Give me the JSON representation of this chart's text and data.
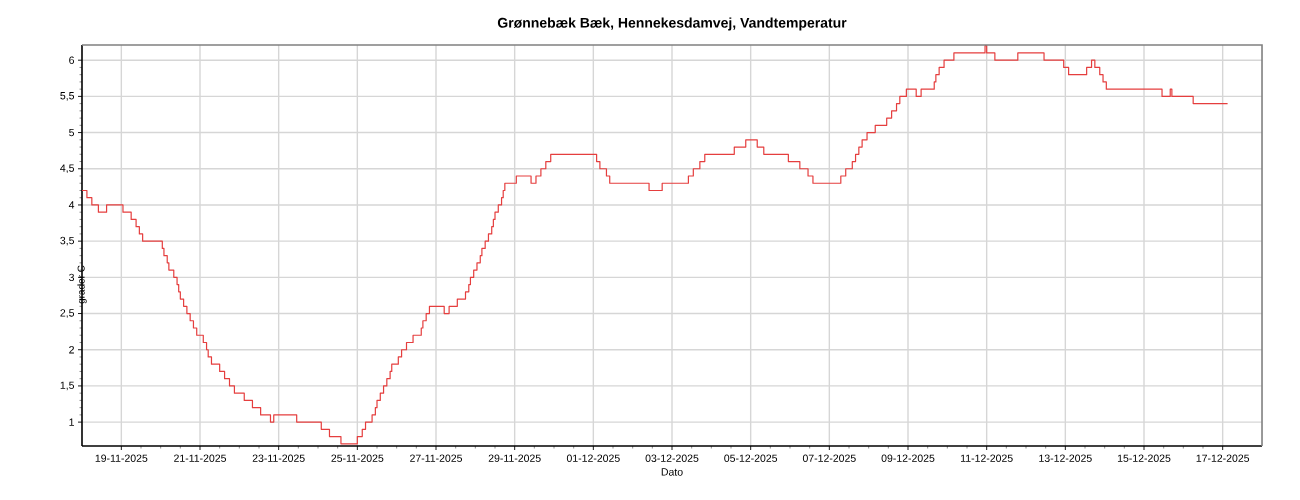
{
  "chart_data": {
    "type": "step",
    "title": "Grønnebæk Bæk, Hennekesdamvej, Vandtemperatur",
    "xlabel": "Dato",
    "ylabel": "grader C",
    "color": "#e53e3e",
    "x": [
      "2025-11-18T00:00",
      "2025-11-18T03:00",
      "2025-11-18T06:00",
      "2025-11-18T10:00",
      "2025-11-18T15:00",
      "2025-11-19T01:00",
      "2025-11-19T06:00",
      "2025-11-19T09:00",
      "2025-11-19T11:00",
      "2025-11-19T13:00",
      "2025-11-20T01:00",
      "2025-11-20T02:00",
      "2025-11-20T04:00",
      "2025-11-20T05:00",
      "2025-11-20T08:00",
      "2025-11-20T10:00",
      "2025-11-20T11:00",
      "2025-11-20T12:00",
      "2025-11-20T14:00",
      "2025-11-20T16:00",
      "2025-11-20T18:00",
      "2025-11-20T20:00",
      "2025-11-20T22:00",
      "2025-11-21T02:00",
      "2025-11-21T04:00",
      "2025-11-21T05:00",
      "2025-11-21T07:00",
      "2025-11-21T12:00",
      "2025-11-21T15:00",
      "2025-11-21T18:00",
      "2025-11-21T21:00",
      "2025-11-22T03:00",
      "2025-11-22T08:00",
      "2025-11-22T13:00",
      "2025-11-22T19:00",
      "2025-11-22T21:00",
      "2025-11-23T11:00",
      "2025-11-24T02:00",
      "2025-11-24T07:00",
      "2025-11-24T14:00",
      "2025-11-25T00:00",
      "2025-11-25T03:00",
      "2025-11-25T05:00",
      "2025-11-25T09:00",
      "2025-11-25T11:00",
      "2025-11-25T12:00",
      "2025-11-25T14:00",
      "2025-11-25T16:00",
      "2025-11-25T18:00",
      "2025-11-25T20:00",
      "2025-11-25T21:00",
      "2025-11-26T01:00",
      "2025-11-26T03:00",
      "2025-11-26T06:00",
      "2025-11-26T10:00",
      "2025-11-26T15:00",
      "2025-11-26T16:00",
      "2025-11-26T18:00",
      "2025-11-26T20:00",
      "2025-11-27T05:00",
      "2025-11-27T08:00",
      "2025-11-27T13:00",
      "2025-11-27T18:00",
      "2025-11-27T20:00",
      "2025-11-27T21:00",
      "2025-11-27T23:00",
      "2025-11-28T01:00",
      "2025-11-28T03:00",
      "2025-11-28T04:00",
      "2025-11-28T06:00",
      "2025-11-28T08:00",
      "2025-11-28T10:00",
      "2025-11-28T11:00",
      "2025-11-28T12:00",
      "2025-11-28T14:00",
      "2025-11-28T16:00",
      "2025-11-28T17:00",
      "2025-11-28T18:00",
      "2025-11-29T01:00",
      "2025-11-29T10:00",
      "2025-11-29T13:00",
      "2025-11-29T16:00",
      "2025-11-29T19:00",
      "2025-11-29T22:00",
      "2025-12-01T02:00",
      "2025-12-01T04:00",
      "2025-12-01T08:00",
      "2025-12-01T10:00",
      "2025-12-02T10:00",
      "2025-12-02T18:00",
      "2025-12-03T10:00",
      "2025-12-03T13:00",
      "2025-12-03T17:00",
      "2025-12-03T20:00",
      "2025-12-04T14:00",
      "2025-12-04T21:00",
      "2025-12-05T04:00",
      "2025-12-05T08:00",
      "2025-12-05T23:00",
      "2025-12-06T06:00",
      "2025-12-06T11:00",
      "2025-12-06T14:00",
      "2025-12-07T07:00",
      "2025-12-07T10:00",
      "2025-12-07T14:00",
      "2025-12-07T16:00",
      "2025-12-07T18:00",
      "2025-12-07T20:00",
      "2025-12-07T23:00",
      "2025-12-08T04:00",
      "2025-12-08T11:00",
      "2025-12-08T14:00",
      "2025-12-08T17:00",
      "2025-12-08T19:00",
      "2025-12-08T23:00",
      "2025-12-09T05:00",
      "2025-12-09T08:00",
      "2025-12-09T16:00",
      "2025-12-09T17:00",
      "2025-12-09T19:00",
      "2025-12-09T22:00",
      "2025-12-10T04:00",
      "2025-12-10T23:00",
      "2025-12-11T00:00",
      "2025-12-11T05:00",
      "2025-12-11T19:00",
      "2025-12-12T11:00",
      "2025-12-12T23:00",
      "2025-12-13T02:00",
      "2025-12-13T13:00",
      "2025-12-13T16:00",
      "2025-12-13T18:00",
      "2025-12-13T21:00",
      "2025-12-13T23:00",
      "2025-12-14T01:00",
      "2025-12-15T11:00",
      "2025-12-15T16:00",
      "2025-12-15T17:00",
      "2025-12-16T06:00",
      "2025-12-17T03:00"
    ],
    "values": [
      4.2,
      4.1,
      4.0,
      3.9,
      4.0,
      3.9,
      3.8,
      3.7,
      3.6,
      3.5,
      3.4,
      3.3,
      3.2,
      3.1,
      3.0,
      2.9,
      2.8,
      2.7,
      2.6,
      2.5,
      2.4,
      2.3,
      2.2,
      2.1,
      2.0,
      1.9,
      1.8,
      1.7,
      1.6,
      1.5,
      1.4,
      1.3,
      1.2,
      1.1,
      1.0,
      1.1,
      1.0,
      0.9,
      0.8,
      0.7,
      0.8,
      0.9,
      1.0,
      1.1,
      1.2,
      1.3,
      1.4,
      1.5,
      1.6,
      1.7,
      1.8,
      1.9,
      2.0,
      2.1,
      2.2,
      2.3,
      2.4,
      2.5,
      2.6,
      2.5,
      2.6,
      2.7,
      2.8,
      2.9,
      3.0,
      3.1,
      3.2,
      3.3,
      3.4,
      3.5,
      3.6,
      3.7,
      3.8,
      3.9,
      4.0,
      4.1,
      4.2,
      4.3,
      4.4,
      4.3,
      4.4,
      4.5,
      4.6,
      4.7,
      4.6,
      4.5,
      4.4,
      4.3,
      4.2,
      4.3,
      4.4,
      4.5,
      4.6,
      4.7,
      4.8,
      4.9,
      4.8,
      4.7,
      4.6,
      4.5,
      4.4,
      4.3,
      4.4,
      4.5,
      4.6,
      4.7,
      4.8,
      4.9,
      5.0,
      5.1,
      5.2,
      5.3,
      5.4,
      5.5,
      5.6,
      5.5,
      5.6,
      5.7,
      5.8,
      5.9,
      6.0,
      6.1,
      6.2,
      6.1,
      6.0,
      6.1,
      6.0,
      5.9,
      5.8,
      5.9,
      6.0,
      5.9,
      5.8,
      5.7,
      5.6,
      5.5,
      5.6,
      5.5,
      5.4,
      5.4
    ],
    "xlim": [
      "2025-11-18T00:00",
      "2025-12-18T00:00"
    ],
    "ylim": [
      0.67,
      6.21
    ],
    "xticks": [
      {
        "value": "2025-11-19",
        "label": "19-11-2025"
      },
      {
        "value": "2025-11-21",
        "label": "21-11-2025"
      },
      {
        "value": "2025-11-23",
        "label": "23-11-2025"
      },
      {
        "value": "2025-11-25",
        "label": "25-11-2025"
      },
      {
        "value": "2025-11-27",
        "label": "27-11-2025"
      },
      {
        "value": "2025-11-29",
        "label": "29-11-2025"
      },
      {
        "value": "2025-12-01",
        "label": "01-12-2025"
      },
      {
        "value": "2025-12-03",
        "label": "03-12-2025"
      },
      {
        "value": "2025-12-05",
        "label": "05-12-2025"
      },
      {
        "value": "2025-12-07",
        "label": "07-12-2025"
      },
      {
        "value": "2025-12-09",
        "label": "09-12-2025"
      },
      {
        "value": "2025-12-11",
        "label": "11-12-2025"
      },
      {
        "value": "2025-12-13",
        "label": "13-12-2025"
      },
      {
        "value": "2025-12-15",
        "label": "15-12-2025"
      },
      {
        "value": "2025-12-17",
        "label": "17-12-2025"
      }
    ],
    "yticks": [
      1,
      {
        "value": 1.5,
        "label": "1,5"
      },
      2,
      {
        "value": 2.5,
        "label": "2,5"
      },
      3,
      {
        "value": 3.5,
        "label": "3,5"
      },
      4,
      {
        "value": 4.5,
        "label": "4,5"
      },
      5,
      {
        "value": 5.5,
        "label": "5,5"
      },
      6
    ],
    "grid": true
  }
}
